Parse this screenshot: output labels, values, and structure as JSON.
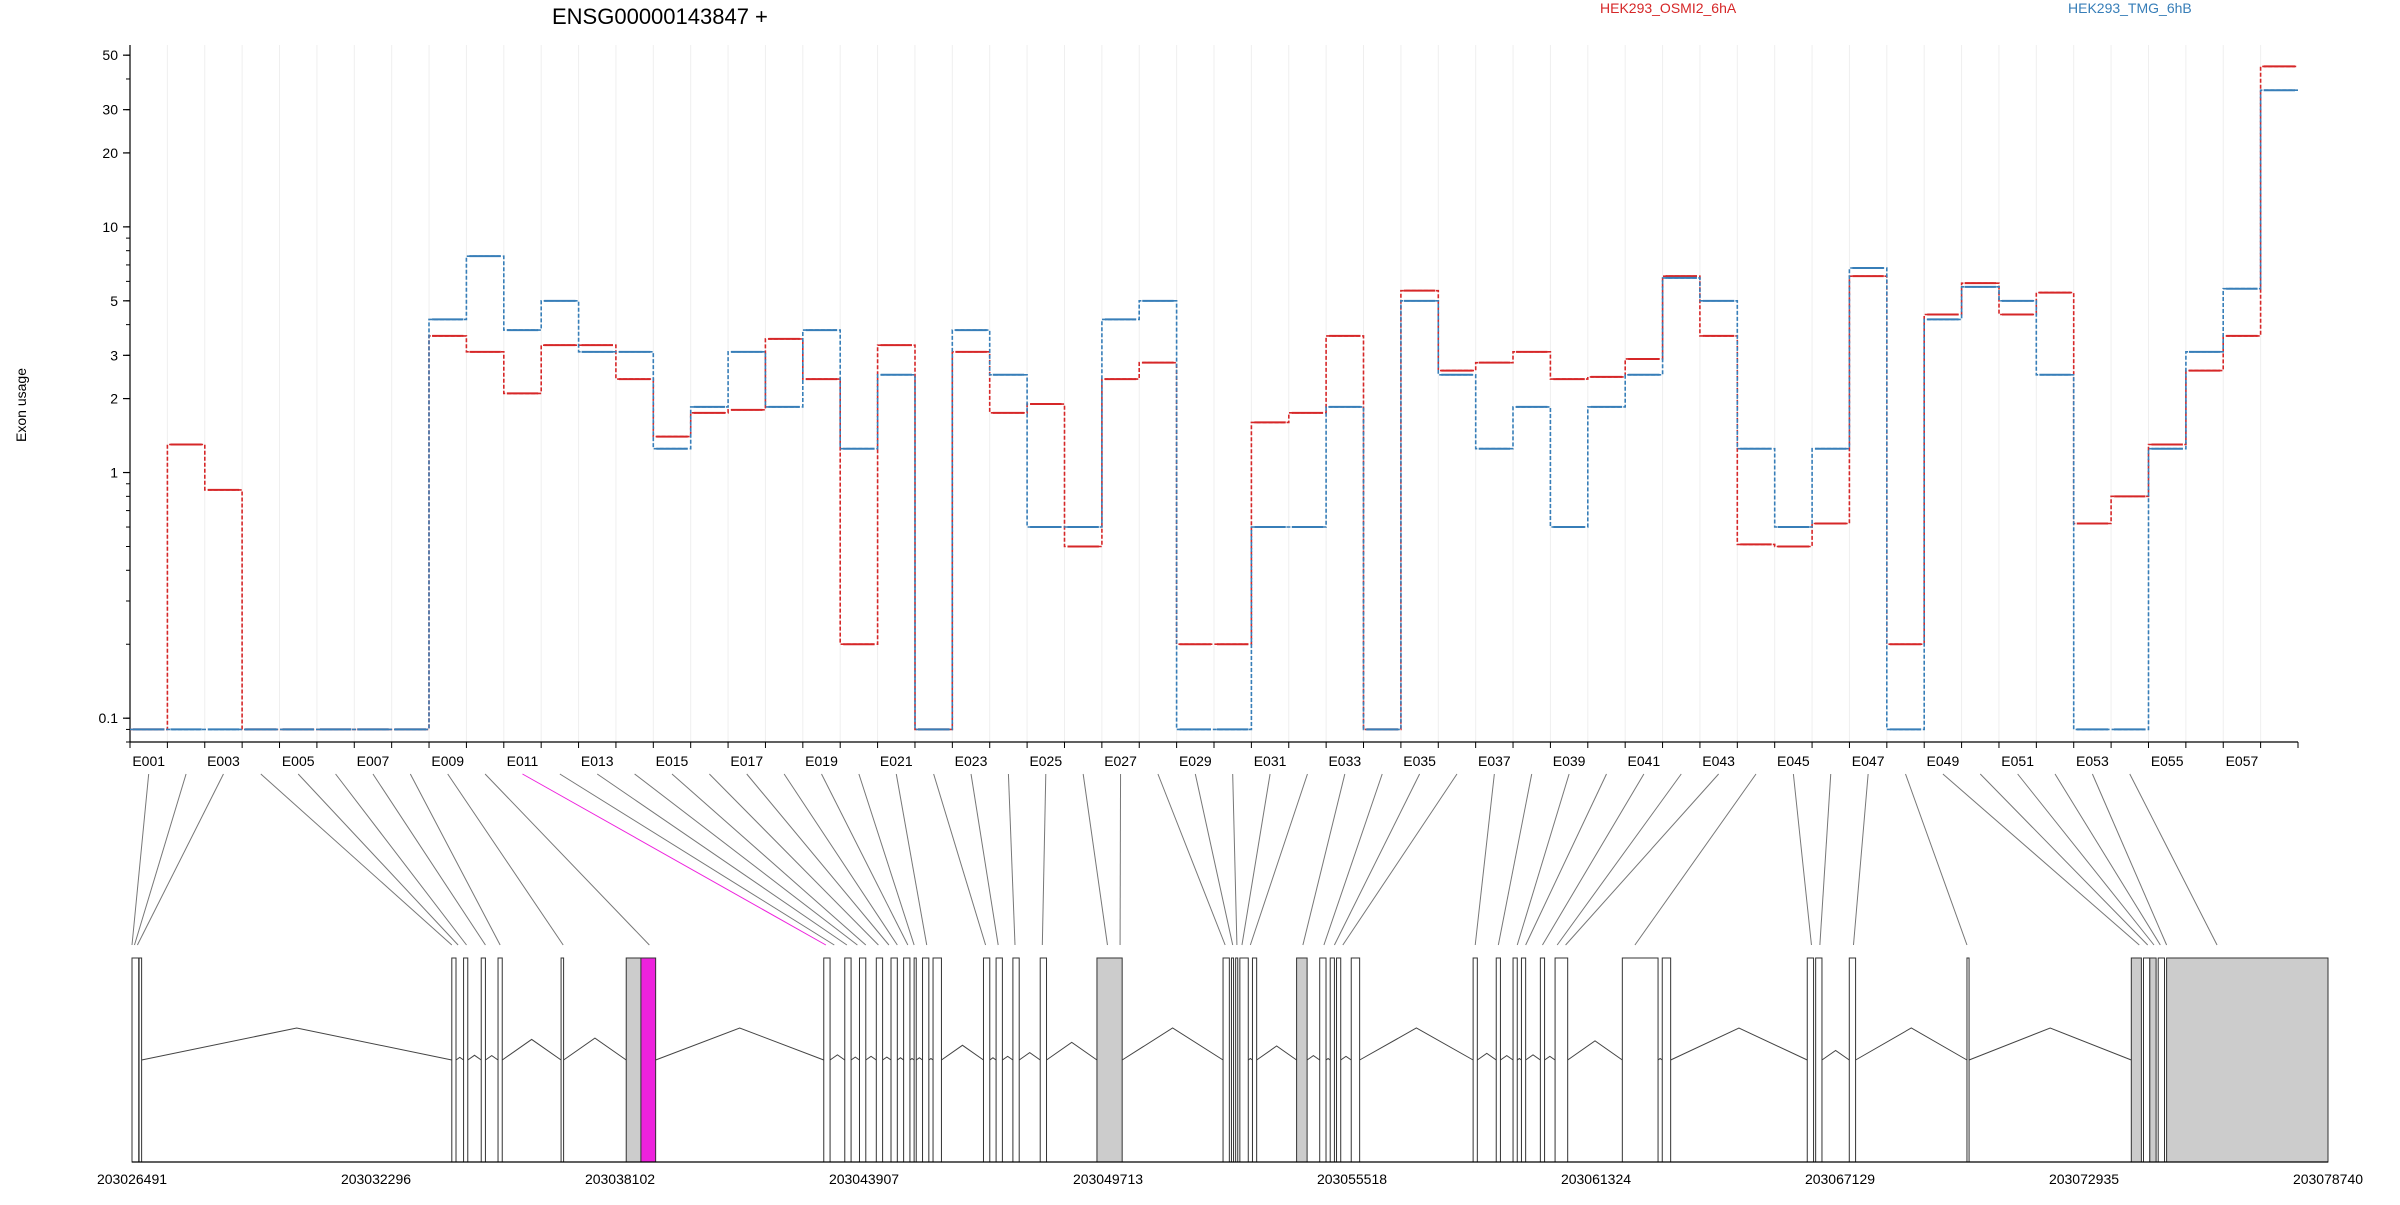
{
  "chart_data": {
    "type": "line",
    "title": "ENSG00000143847 +",
    "ylabel": "Exon usage",
    "yscale": "log",
    "ylim": [
      0.08,
      55
    ],
    "yticks": [
      "0.1",
      "1",
      "2",
      "3",
      "5",
      "10",
      "20",
      "30",
      "50"
    ],
    "grid": "vertical",
    "legend_position": "top-right",
    "series": [
      {
        "name": "HEK293_OSMI2_6hA",
        "color": "#d62728",
        "values": [
          0.09,
          1.3,
          0.85,
          0.09,
          0.09,
          0.09,
          0.09,
          0.09,
          3.6,
          3.1,
          2.1,
          3.3,
          3.3,
          2.4,
          1.4,
          1.75,
          1.8,
          3.5,
          2.4,
          0.2,
          3.3,
          0.09,
          3.1,
          1.75,
          1.9,
          0.5,
          2.4,
          2.8,
          0.2,
          0.2,
          1.6,
          1.75,
          3.6,
          0.09,
          5.5,
          2.6,
          2.8,
          3.1,
          2.4,
          2.45,
          2.9,
          6.3,
          3.6,
          0.51,
          0.5,
          0.62,
          6.3,
          0.2,
          4.4,
          5.9,
          4.4,
          5.4,
          0.62,
          0.8,
          1.3,
          2.6,
          3.6,
          45
        ]
      },
      {
        "name": "HEK293_TMG_6hB",
        "color": "#377eb8",
        "values": [
          0.09,
          0.09,
          0.09,
          0.09,
          0.09,
          0.09,
          0.09,
          0.09,
          4.2,
          7.6,
          3.8,
          5.0,
          3.1,
          3.1,
          1.25,
          1.85,
          3.1,
          1.85,
          3.8,
          1.25,
          2.5,
          0.09,
          3.8,
          2.5,
          0.6,
          0.6,
          4.2,
          5.0,
          0.09,
          0.09,
          0.6,
          0.6,
          1.85,
          0.09,
          5.0,
          2.5,
          1.25,
          1.85,
          0.6,
          1.85,
          2.5,
          6.2,
          5.0,
          1.25,
          0.6,
          1.25,
          6.8,
          0.09,
          4.2,
          5.7,
          5.0,
          2.5,
          0.09,
          0.09,
          1.25,
          3.1,
          5.6,
          36
        ]
      }
    ],
    "exon_labels": [
      "E001",
      "E003",
      "E005",
      "E007",
      "E009",
      "E011",
      "E013",
      "E015",
      "E017",
      "E019",
      "E021",
      "E023",
      "E025",
      "E027",
      "E029",
      "E031",
      "E033",
      "E035",
      "E037",
      "E039",
      "E041",
      "E043",
      "E045",
      "E047",
      "E049",
      "E051",
      "E053",
      "E055",
      "E057"
    ],
    "genomic_range": [
      203026491,
      203078740
    ],
    "genomic_ticks": [
      "203026491",
      "203032296",
      "203038102",
      "203043907",
      "203049713",
      "203055518",
      "203061324",
      "203067129",
      "203072935",
      "203078740"
    ],
    "highlighted_exon": "E011",
    "highlight_color": "#ee22dd",
    "exon_fill_colors": {
      "default": "#ffffff",
      "significant": "#cccccc",
      "highlighted": "#ee22dd"
    },
    "exons": [
      {
        "start": 203026491,
        "end": 203026650,
        "fill": "default"
      },
      {
        "start": 203026660,
        "end": 203026720,
        "fill": "default"
      },
      {
        "start": 203034100,
        "end": 203034200,
        "fill": "default"
      },
      {
        "start": 203034380,
        "end": 203034480,
        "fill": "default"
      },
      {
        "start": 203034800,
        "end": 203034900,
        "fill": "default"
      },
      {
        "start": 203035200,
        "end": 203035300,
        "fill": "default"
      },
      {
        "start": 203036700,
        "end": 203036760,
        "fill": "default"
      },
      {
        "start": 203038250,
        "end": 203038600,
        "fill": "significant"
      },
      {
        "start": 203038600,
        "end": 203038950,
        "fill": "highlighted"
      },
      {
        "start": 203042950,
        "end": 203043100,
        "fill": "default"
      },
      {
        "start": 203043450,
        "end": 203043600,
        "fill": "default"
      },
      {
        "start": 203043800,
        "end": 203043950,
        "fill": "default"
      },
      {
        "start": 203044200,
        "end": 203044350,
        "fill": "default"
      },
      {
        "start": 203044550,
        "end": 203044700,
        "fill": "default"
      },
      {
        "start": 203044850,
        "end": 203045000,
        "fill": "default"
      },
      {
        "start": 203045100,
        "end": 203045150,
        "fill": "default"
      },
      {
        "start": 203045300,
        "end": 203045450,
        "fill": "default"
      },
      {
        "start": 203045550,
        "end": 203045750,
        "fill": "default"
      },
      {
        "start": 203046750,
        "end": 203046900,
        "fill": "default"
      },
      {
        "start": 203047050,
        "end": 203047200,
        "fill": "default"
      },
      {
        "start": 203047450,
        "end": 203047600,
        "fill": "default"
      },
      {
        "start": 203048100,
        "end": 203048250,
        "fill": "default"
      },
      {
        "start": 203049450,
        "end": 203050050,
        "fill": "significant"
      },
      {
        "start": 203052450,
        "end": 203052600,
        "fill": "default"
      },
      {
        "start": 203052650,
        "end": 203052700,
        "fill": "default"
      },
      {
        "start": 203052750,
        "end": 203052800,
        "fill": "default"
      },
      {
        "start": 203052850,
        "end": 203053050,
        "fill": "default"
      },
      {
        "start": 203053150,
        "end": 203053250,
        "fill": "default"
      },
      {
        "start": 203054200,
        "end": 203054450,
        "fill": "significant"
      },
      {
        "start": 203054750,
        "end": 203054900,
        "fill": "default"
      },
      {
        "start": 203055000,
        "end": 203055100,
        "fill": "default"
      },
      {
        "start": 203055150,
        "end": 203055250,
        "fill": "default"
      },
      {
        "start": 203055500,
        "end": 203055700,
        "fill": "default"
      },
      {
        "start": 203058400,
        "end": 203058500,
        "fill": "default"
      },
      {
        "start": 203058950,
        "end": 203059050,
        "fill": "default"
      },
      {
        "start": 203059350,
        "end": 203059450,
        "fill": "default"
      },
      {
        "start": 203059550,
        "end": 203059650,
        "fill": "default"
      },
      {
        "start": 203060000,
        "end": 203060100,
        "fill": "default"
      },
      {
        "start": 203060350,
        "end": 203060650,
        "fill": "default"
      },
      {
        "start": 203061950,
        "end": 203062800,
        "fill": "default"
      },
      {
        "start": 203062900,
        "end": 203063100,
        "fill": "default"
      },
      {
        "start": 203066350,
        "end": 203066500,
        "fill": "default"
      },
      {
        "start": 203066550,
        "end": 203066700,
        "fill": "default"
      },
      {
        "start": 203067350,
        "end": 203067500,
        "fill": "default"
      },
      {
        "start": 203070150,
        "end": 203070200,
        "fill": "default"
      },
      {
        "start": 203074060,
        "end": 203074300,
        "fill": "significant"
      },
      {
        "start": 203074350,
        "end": 203074500,
        "fill": "default"
      },
      {
        "start": 203074500,
        "end": 203074650,
        "fill": "significant"
      },
      {
        "start": 203074700,
        "end": 203074850,
        "fill": "default"
      },
      {
        "start": 203074900,
        "end": 203078740,
        "fill": "significant"
      }
    ],
    "connector_targets": [
      203026491,
      203026550,
      203026620,
      203034100,
      203034250,
      203034450,
      203034900,
      203035250,
      203036750,
      203038800,
      203043000,
      203043200,
      203043500,
      203043750,
      203043950,
      203044250,
      203044500,
      203044700,
      203044950,
      203045100,
      203045400,
      203046800,
      203047100,
      203047500,
      203048150,
      203049700,
      203050000,
      203052500,
      203052680,
      203052780,
      203052900,
      203053100,
      203054350,
      203054850,
      203055100,
      203055300,
      203058450,
      203059000,
      203059450,
      203059650,
      203060050,
      203060400,
      203060600,
      203062250,
      203066450,
      203066650,
      203067450,
      203070150,
      203074250,
      203074450,
      203074600,
      203074750,
      203074900,
      203076100
    ]
  }
}
